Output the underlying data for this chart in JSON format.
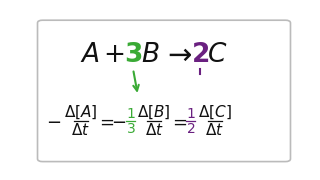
{
  "background_color": "#ffffff",
  "border_color": "#bbbbbb",
  "black": "#111111",
  "green": "#3aaa35",
  "purple": "#6a2080",
  "figsize": [
    3.2,
    1.8
  ],
  "dpi": 100
}
